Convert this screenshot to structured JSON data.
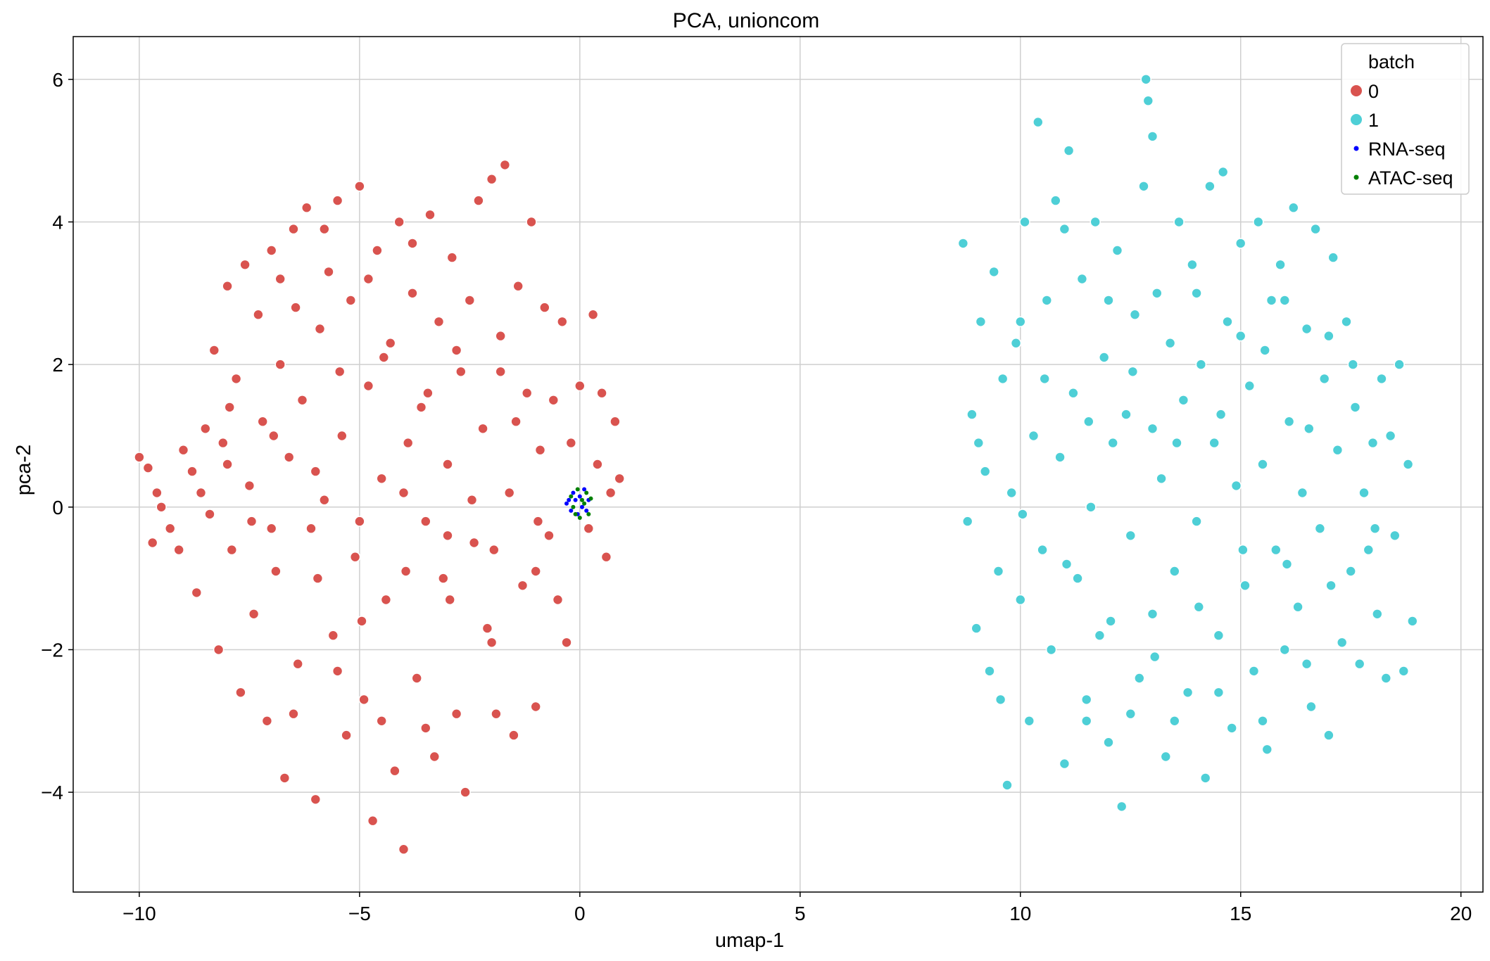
{
  "chart_data": {
    "type": "scatter",
    "title": "PCA, unioncom",
    "xlabel": "umap-1",
    "ylabel": "pca-2",
    "xlim": [
      -11.5,
      20.5
    ],
    "ylim": [
      -5.4,
      6.6
    ],
    "xticks": [
      -10,
      -5,
      0,
      5,
      10,
      15,
      20
    ],
    "xtick_labels": [
      "−10",
      "−5",
      "0",
      "5",
      "10",
      "15",
      "20"
    ],
    "yticks": [
      -4,
      -2,
      0,
      2,
      4,
      6
    ],
    "ytick_labels": [
      "−4",
      "−2",
      "0",
      "2",
      "4",
      "6"
    ],
    "grid": true,
    "legend": {
      "placement": "top-right",
      "title": "batch",
      "entries": [
        {
          "label": "0",
          "color": "#d9534f",
          "marker": "large-circle"
        },
        {
          "label": "1",
          "color": "#4ecfd6",
          "marker": "large-circle"
        },
        {
          "label": "RNA-seq",
          "color": "#0000ff",
          "marker": "small-dot"
        },
        {
          "label": "ATAC-seq",
          "color": "#008000",
          "marker": "small-dot"
        }
      ]
    },
    "series": [
      {
        "name": "0",
        "color": "#d9534f",
        "points": [
          [
            -10.0,
            0.7
          ],
          [
            -9.8,
            0.55
          ],
          [
            -9.7,
            -0.5
          ],
          [
            -9.5,
            0.0
          ],
          [
            -9.3,
            -0.3
          ],
          [
            -9.0,
            0.8
          ],
          [
            -8.8,
            0.5
          ],
          [
            -8.7,
            -1.2
          ],
          [
            -8.5,
            1.1
          ],
          [
            -8.4,
            -0.1
          ],
          [
            -8.3,
            2.2
          ],
          [
            -8.2,
            -2.0
          ],
          [
            -8.1,
            0.9
          ],
          [
            -8.0,
            3.1
          ],
          [
            -7.9,
            -0.6
          ],
          [
            -7.8,
            1.8
          ],
          [
            -7.7,
            -2.6
          ],
          [
            -7.6,
            3.4
          ],
          [
            -7.5,
            0.3
          ],
          [
            -7.4,
            -1.5
          ],
          [
            -7.3,
            2.7
          ],
          [
            -7.2,
            1.2
          ],
          [
            -7.1,
            -3.0
          ],
          [
            -7.0,
            3.6
          ],
          [
            -6.9,
            -0.9
          ],
          [
            -6.8,
            2.0
          ],
          [
            -6.7,
            -3.8
          ],
          [
            -6.6,
            0.7
          ],
          [
            -6.5,
            3.9
          ],
          [
            -6.4,
            -2.2
          ],
          [
            -6.3,
            1.5
          ],
          [
            -6.2,
            4.2
          ],
          [
            -6.1,
            -0.3
          ],
          [
            -6.0,
            -4.1
          ],
          [
            -5.9,
            2.5
          ],
          [
            -5.8,
            0.1
          ],
          [
            -5.7,
            3.3
          ],
          [
            -5.6,
            -1.8
          ],
          [
            -5.5,
            4.3
          ],
          [
            -5.4,
            1.0
          ],
          [
            -5.3,
            -3.2
          ],
          [
            -5.2,
            2.9
          ],
          [
            -5.1,
            -0.7
          ],
          [
            -5.0,
            4.5
          ],
          [
            -4.9,
            -2.7
          ],
          [
            -4.8,
            1.7
          ],
          [
            -4.7,
            -4.4
          ],
          [
            -4.6,
            3.6
          ],
          [
            -4.5,
            0.4
          ],
          [
            -4.4,
            -1.3
          ],
          [
            -4.3,
            2.3
          ],
          [
            -4.2,
            -3.7
          ],
          [
            -4.1,
            4.0
          ],
          [
            -4.0,
            -4.8
          ],
          [
            -3.9,
            0.9
          ],
          [
            -3.8,
            3.0
          ],
          [
            -3.7,
            -2.4
          ],
          [
            -3.6,
            1.4
          ],
          [
            -3.5,
            -0.2
          ],
          [
            -3.4,
            4.1
          ],
          [
            -3.3,
            -3.5
          ],
          [
            -3.2,
            2.6
          ],
          [
            -3.1,
            -1.0
          ],
          [
            -3.0,
            0.6
          ],
          [
            -2.9,
            3.5
          ],
          [
            -2.8,
            -2.9
          ],
          [
            -2.7,
            1.9
          ],
          [
            -2.6,
            -4.0
          ],
          [
            -2.5,
            2.9
          ],
          [
            -2.4,
            -0.5
          ],
          [
            -2.3,
            4.3
          ],
          [
            -2.2,
            1.1
          ],
          [
            -2.1,
            -1.7
          ],
          [
            -2.0,
            4.6
          ],
          [
            -1.9,
            -2.9
          ],
          [
            -1.8,
            2.4
          ],
          [
            -1.7,
            4.8
          ],
          [
            -1.6,
            0.2
          ],
          [
            -1.5,
            -3.2
          ],
          [
            -1.4,
            3.1
          ],
          [
            -1.3,
            -1.1
          ],
          [
            -1.2,
            1.6
          ],
          [
            -1.1,
            4.0
          ],
          [
            -1.0,
            -2.8
          ],
          [
            -0.9,
            0.8
          ],
          [
            -0.8,
            2.8
          ],
          [
            -0.7,
            -0.4
          ],
          [
            -0.6,
            1.5
          ],
          [
            -0.5,
            -1.3
          ],
          [
            -0.4,
            2.6
          ],
          [
            -0.3,
            -1.9
          ],
          [
            -0.2,
            0.9
          ],
          [
            0.0,
            1.7
          ],
          [
            0.2,
            -0.3
          ],
          [
            0.3,
            2.7
          ],
          [
            0.4,
            0.6
          ],
          [
            0.5,
            1.6
          ],
          [
            0.6,
            -0.7
          ],
          [
            0.7,
            0.2
          ],
          [
            0.8,
            1.2
          ],
          [
            0.9,
            0.4
          ],
          [
            -9.6,
            0.2
          ],
          [
            -9.1,
            -0.6
          ],
          [
            -8.6,
            0.2
          ],
          [
            -7.95,
            1.4
          ],
          [
            -7.45,
            -0.2
          ],
          [
            -6.95,
            1.0
          ],
          [
            -6.45,
            2.8
          ],
          [
            -5.95,
            -1.0
          ],
          [
            -5.45,
            1.9
          ],
          [
            -4.95,
            -1.6
          ],
          [
            -4.45,
            2.1
          ],
          [
            -3.95,
            -0.9
          ],
          [
            -3.45,
            1.6
          ],
          [
            -2.95,
            -1.3
          ],
          [
            -2.45,
            0.1
          ],
          [
            -1.95,
            -0.6
          ],
          [
            -1.45,
            1.2
          ],
          [
            -0.95,
            -0.2
          ],
          [
            -6.0,
            0.5
          ],
          [
            -5.0,
            -0.2
          ],
          [
            -4.0,
            0.2
          ],
          [
            -3.0,
            -0.4
          ],
          [
            -7.0,
            -0.3
          ],
          [
            -8.0,
            0.6
          ],
          [
            -5.5,
            -2.3
          ],
          [
            -4.5,
            -3.0
          ],
          [
            -3.5,
            -3.1
          ],
          [
            -6.5,
            -2.9
          ],
          [
            -2.0,
            -1.9
          ],
          [
            -1.0,
            -0.9
          ],
          [
            -6.8,
            3.2
          ],
          [
            -5.8,
            3.9
          ],
          [
            -4.8,
            3.2
          ],
          [
            -3.8,
            3.7
          ],
          [
            -2.8,
            2.2
          ],
          [
            -1.8,
            1.9
          ]
        ]
      },
      {
        "name": "1",
        "color": "#4ecfd6",
        "points": [
          [
            8.7,
            3.7
          ],
          [
            8.8,
            -0.2
          ],
          [
            8.9,
            1.3
          ],
          [
            9.0,
            -1.7
          ],
          [
            9.1,
            2.6
          ],
          [
            9.2,
            0.5
          ],
          [
            9.3,
            -2.3
          ],
          [
            9.4,
            3.3
          ],
          [
            9.5,
            -0.9
          ],
          [
            9.6,
            1.8
          ],
          [
            9.7,
            -3.9
          ],
          [
            9.8,
            0.2
          ],
          [
            9.9,
            2.3
          ],
          [
            10.0,
            -1.3
          ],
          [
            10.1,
            4.0
          ],
          [
            10.2,
            -3.0
          ],
          [
            10.3,
            1.0
          ],
          [
            10.4,
            5.4
          ],
          [
            10.5,
            -0.6
          ],
          [
            10.6,
            2.9
          ],
          [
            10.7,
            -2.0
          ],
          [
            10.8,
            4.3
          ],
          [
            10.9,
            0.7
          ],
          [
            11.0,
            -3.6
          ],
          [
            11.1,
            5.0
          ],
          [
            11.2,
            1.6
          ],
          [
            11.3,
            -1.0
          ],
          [
            11.4,
            3.2
          ],
          [
            11.5,
            -2.7
          ],
          [
            11.6,
            0.0
          ],
          [
            11.7,
            4.0
          ],
          [
            11.8,
            -1.8
          ],
          [
            11.9,
            2.1
          ],
          [
            12.0,
            -3.3
          ],
          [
            12.1,
            0.9
          ],
          [
            12.2,
            3.6
          ],
          [
            12.3,
            -4.2
          ],
          [
            12.4,
            1.3
          ],
          [
            12.5,
            -0.4
          ],
          [
            12.6,
            2.7
          ],
          [
            12.7,
            -2.4
          ],
          [
            12.8,
            4.5
          ],
          [
            12.85,
            6.0
          ],
          [
            12.9,
            5.7
          ],
          [
            13.0,
            5.2
          ],
          [
            13.0,
            -1.5
          ],
          [
            13.1,
            3.0
          ],
          [
            13.2,
            0.4
          ],
          [
            13.3,
            -3.5
          ],
          [
            13.4,
            2.3
          ],
          [
            13.5,
            -0.9
          ],
          [
            13.6,
            4.0
          ],
          [
            13.7,
            1.5
          ],
          [
            13.8,
            -2.6
          ],
          [
            13.9,
            3.4
          ],
          [
            14.0,
            -0.2
          ],
          [
            14.1,
            2.0
          ],
          [
            14.2,
            -3.8
          ],
          [
            14.3,
            4.5
          ],
          [
            14.4,
            0.9
          ],
          [
            14.5,
            -1.8
          ],
          [
            14.6,
            4.7
          ],
          [
            14.7,
            2.6
          ],
          [
            14.8,
            -3.1
          ],
          [
            14.9,
            0.3
          ],
          [
            15.0,
            3.7
          ],
          [
            15.1,
            -1.1
          ],
          [
            15.2,
            1.7
          ],
          [
            15.3,
            -2.3
          ],
          [
            15.4,
            4.0
          ],
          [
            15.5,
            0.6
          ],
          [
            15.6,
            -3.4
          ],
          [
            15.7,
            2.9
          ],
          [
            15.8,
            -0.6
          ],
          [
            15.9,
            3.4
          ],
          [
            16.0,
            -2.0
          ],
          [
            16.1,
            1.2
          ],
          [
            16.2,
            4.2
          ],
          [
            16.3,
            -1.4
          ],
          [
            16.4,
            0.2
          ],
          [
            16.5,
            2.5
          ],
          [
            16.6,
            -2.8
          ],
          [
            16.7,
            3.9
          ],
          [
            16.8,
            -0.3
          ],
          [
            16.9,
            1.8
          ],
          [
            17.0,
            -3.2
          ],
          [
            17.1,
            3.5
          ],
          [
            17.2,
            0.8
          ],
          [
            17.3,
            -1.9
          ],
          [
            17.4,
            2.6
          ],
          [
            17.5,
            -0.9
          ],
          [
            17.6,
            1.4
          ],
          [
            17.7,
            -2.2
          ],
          [
            17.8,
            0.2
          ],
          [
            17.9,
            -0.6
          ],
          [
            18.0,
            0.9
          ],
          [
            18.1,
            -1.5
          ],
          [
            18.2,
            1.8
          ],
          [
            18.3,
            -2.4
          ],
          [
            18.4,
            1.0
          ],
          [
            18.5,
            -0.4
          ],
          [
            18.6,
            2.0
          ],
          [
            18.7,
            -2.3
          ],
          [
            18.8,
            0.6
          ],
          [
            18.9,
            -1.6
          ],
          [
            9.05,
            0.9
          ],
          [
            9.55,
            -2.7
          ],
          [
            10.05,
            -0.1
          ],
          [
            10.55,
            1.8
          ],
          [
            11.05,
            -0.8
          ],
          [
            11.55,
            1.2
          ],
          [
            12.05,
            -1.6
          ],
          [
            12.55,
            1.9
          ],
          [
            13.05,
            -2.1
          ],
          [
            13.55,
            0.9
          ],
          [
            14.05,
            -1.4
          ],
          [
            14.55,
            1.3
          ],
          [
            15.05,
            -0.6
          ],
          [
            15.55,
            2.2
          ],
          [
            16.05,
            -0.8
          ],
          [
            16.55,
            1.1
          ],
          [
            17.05,
            -1.1
          ],
          [
            17.55,
            2.0
          ],
          [
            18.05,
            -0.3
          ],
          [
            10.0,
            2.6
          ],
          [
            11.0,
            3.9
          ],
          [
            12.0,
            2.9
          ],
          [
            13.0,
            1.1
          ],
          [
            14.0,
            3.0
          ],
          [
            15.0,
            2.4
          ],
          [
            16.0,
            2.9
          ],
          [
            17.0,
            2.4
          ],
          [
            11.5,
            -3.0
          ],
          [
            12.5,
            -2.9
          ],
          [
            13.5,
            -3.0
          ],
          [
            14.5,
            -2.6
          ],
          [
            15.5,
            -3.0
          ],
          [
            16.5,
            -2.2
          ]
        ]
      },
      {
        "name": "RNA-seq",
        "color": "#0000ff",
        "points": [
          [
            -0.3,
            0.05
          ],
          [
            -0.2,
            -0.05
          ],
          [
            -0.15,
            0.2
          ],
          [
            -0.1,
            0.1
          ],
          [
            -0.05,
            -0.1
          ],
          [
            0.0,
            0.15
          ],
          [
            0.05,
            0.0
          ],
          [
            0.1,
            0.25
          ],
          [
            0.15,
            -0.05
          ],
          [
            -0.25,
            0.1
          ],
          [
            0.2,
            0.1
          ]
        ]
      },
      {
        "name": "ATAC-seq",
        "color": "#008000",
        "points": [
          [
            -0.2,
            0.15
          ],
          [
            -0.1,
            -0.1
          ],
          [
            -0.05,
            0.25
          ],
          [
            0.0,
            -0.15
          ],
          [
            0.05,
            0.1
          ],
          [
            0.1,
            0.05
          ],
          [
            0.15,
            0.2
          ],
          [
            0.2,
            -0.1
          ],
          [
            0.25,
            0.12
          ],
          [
            -0.15,
            0.0
          ]
        ]
      }
    ]
  }
}
